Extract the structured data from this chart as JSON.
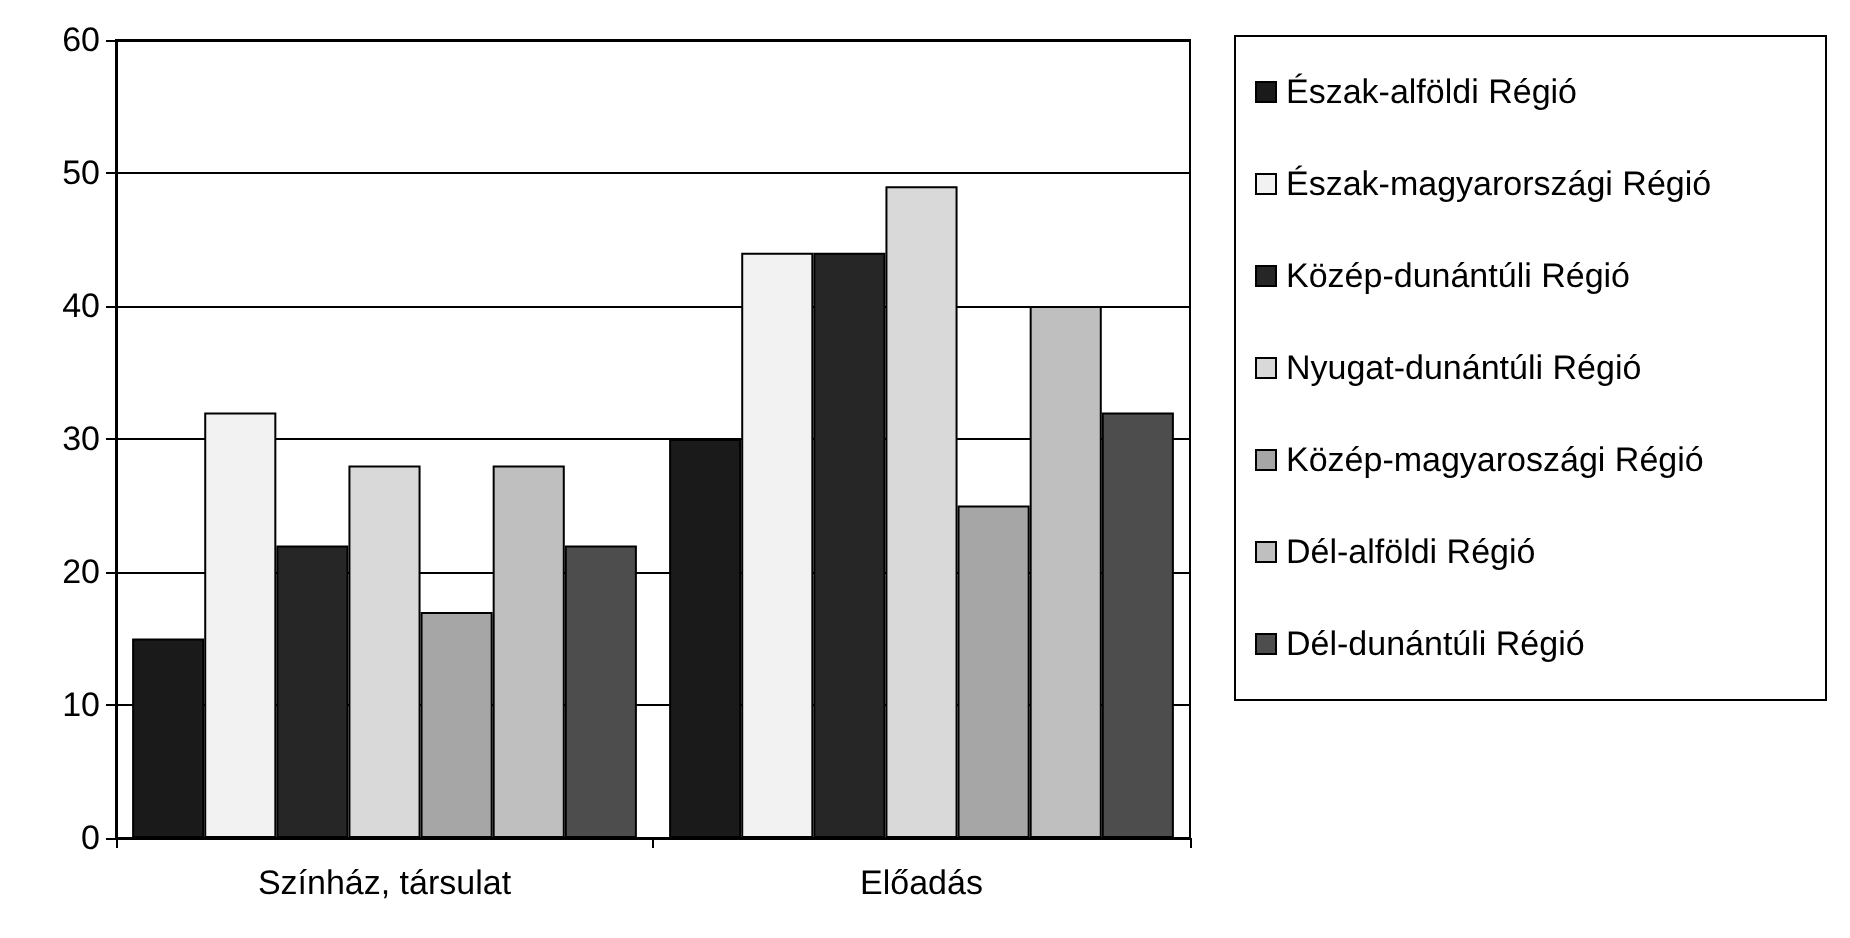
{
  "chart_data": {
    "type": "bar",
    "categories": [
      "Színház, társulat",
      "Előadás"
    ],
    "series": [
      {
        "name": "Észak-alföldi Régió",
        "color": "#1a1a1a",
        "values": [
          15,
          30
        ]
      },
      {
        "name": "Észak-magyarországi Régió",
        "color": "#f2f2f2",
        "values": [
          32,
          44
        ]
      },
      {
        "name": "Közép-dunántúli Régió",
        "color": "#262626",
        "values": [
          22,
          44
        ]
      },
      {
        "name": "Nyugat-dunántúli Régió",
        "color": "#d9d9d9",
        "values": [
          28,
          49
        ]
      },
      {
        "name": "Közép-magyaroszági Régió",
        "color": "#a6a6a6",
        "values": [
          17,
          25
        ]
      },
      {
        "name": "Dél-alföldi Régió",
        "color": "#bfbfbf",
        "values": [
          28,
          40
        ]
      },
      {
        "name": "Dél-dunántúli Régió",
        "color": "#4d4d4d",
        "values": [
          22,
          32
        ]
      }
    ],
    "ylim": [
      0,
      60
    ],
    "yticks": [
      0,
      10,
      20,
      30,
      40,
      50,
      60
    ],
    "grid": "y",
    "legend": "right"
  }
}
